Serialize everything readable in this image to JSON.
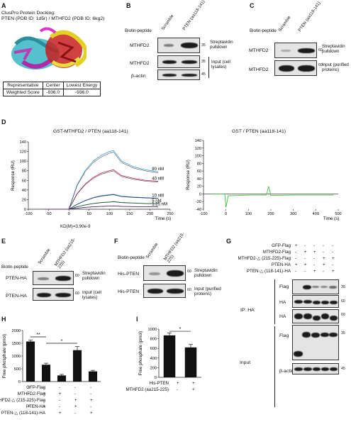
{
  "panels": {
    "a": "A",
    "b": "B",
    "c": "C",
    "d": "D",
    "e": "E",
    "f": "F",
    "g": "G",
    "h": "H",
    "i": "I"
  },
  "a": {
    "title": "ClusPro Protein Docking:",
    "subtitle": "PTEN (PDB ID: 1d5r) / MTHFD2 (PDB ID: 6kg2)",
    "table": {
      "h1": "Representative",
      "h2": "Center",
      "h3": "Lowest Energy",
      "r1": "Weighted Score",
      "r2": "-936.0",
      "r3": "-936.0"
    }
  },
  "b": {
    "biotin": "Biotin-peptide",
    "lane1": "Scramble",
    "lane2": "PTEN (aa118-141)",
    "row1": "MTHFD2",
    "row2": "MTHFD2",
    "row3": "β-actin",
    "mw1": "35",
    "mw2": "35",
    "mw3": "45",
    "lab1": "Streptavidin pulldown",
    "lab2": "Input (cell lysates)"
  },
  "c": {
    "biotin": "Biotin-peptide",
    "lane1": "Scramble",
    "lane2": "PTEN (aa118-141)",
    "row1": "MTHFD2",
    "row2": "MTHFD2",
    "mw1": "60",
    "mw2": "60",
    "lab1": "Streptavidin pulldown",
    "lab2": "Input (purified proteins)"
  },
  "d": {
    "title1": "GST-MTHFD2 / PTEN (aa118-141)",
    "title2": "GST / PTEN (aa118-141)",
    "ylabel": "Response (RU)",
    "xlabel": "Time (s)",
    "conc": [
      "80 nM",
      "40 nM",
      "10 nM",
      "5 nM",
      "1.25 nM"
    ],
    "kd": "KD(M)=3.90e-9"
  },
  "chart_data": [
    {
      "type": "line",
      "title": "GST-MTHFD2 / PTEN (aa118-141)",
      "xlabel": "Time (s)",
      "ylabel": "Response (RU)",
      "xlim": [
        -100,
        250
      ],
      "ylim": [
        0,
        140
      ],
      "xticks": [
        -100,
        -50,
        0,
        50,
        100,
        150,
        200,
        250
      ],
      "yticks": [
        0,
        20,
        40,
        60,
        80,
        100,
        120,
        140
      ],
      "series": [
        {
          "name": "80 nM",
          "x": [
            -60,
            0,
            20,
            40,
            60,
            80,
            100,
            110,
            130,
            160,
            190,
            220
          ],
          "y": [
            0,
            0,
            50,
            80,
            100,
            112,
            120,
            122,
            100,
            88,
            82,
            78
          ]
        },
        {
          "name": "40 nM",
          "x": [
            -60,
            0,
            20,
            40,
            60,
            80,
            100,
            110,
            130,
            160,
            190,
            220
          ],
          "y": [
            0,
            0,
            32,
            52,
            66,
            75,
            80,
            82,
            70,
            64,
            60,
            58
          ]
        },
        {
          "name": "10 nM",
          "x": [
            -60,
            0,
            20,
            40,
            60,
            80,
            100,
            110,
            130,
            160,
            190,
            220
          ],
          "y": [
            0,
            0,
            10,
            18,
            24,
            28,
            30,
            31,
            27,
            25,
            24,
            23
          ]
        },
        {
          "name": "5 nM",
          "x": [
            -60,
            0,
            20,
            40,
            60,
            80,
            100,
            110,
            130,
            160,
            190,
            220
          ],
          "y": [
            0,
            0,
            5,
            9,
            12,
            14,
            15,
            16,
            14,
            13,
            12,
            12
          ]
        },
        {
          "name": "1.25 nM",
          "x": [
            -60,
            0,
            20,
            40,
            60,
            80,
            100,
            110,
            130,
            160,
            190,
            220
          ],
          "y": [
            0,
            0,
            2,
            4,
            5,
            6,
            6.5,
            7,
            6,
            5.5,
            5,
            5
          ]
        }
      ]
    },
    {
      "type": "line",
      "title": "GST / PTEN (aa118-141)",
      "xlabel": "Time (s)",
      "ylabel": "Response (RU)",
      "xlim": [
        -100,
        500
      ],
      "ylim": [
        -40,
        140
      ],
      "xticks": [
        -100,
        0,
        100,
        200,
        300,
        400,
        500
      ],
      "yticks": [
        -40,
        -20,
        0,
        20,
        40,
        60,
        80,
        100,
        120,
        140
      ],
      "series": [
        {
          "x": [
            -60,
            -5,
            0,
            10,
            100,
            180,
            190,
            200,
            300,
            400,
            480
          ],
          "y": [
            0,
            0,
            -35,
            -5,
            -3,
            -3,
            20,
            -4,
            -3,
            -3,
            -3
          ]
        }
      ]
    },
    {
      "type": "bar",
      "xlabel": "",
      "ylabel": "Free phosphate (pmol)",
      "ylim": [
        0,
        2000
      ],
      "yticks": [
        0,
        500,
        1000,
        1500,
        2000
      ],
      "categories": [
        "1",
        "2",
        "3",
        "4",
        "5"
      ],
      "values": [
        1570,
        660,
        240,
        1230,
        400
      ],
      "errors": [
        50,
        60,
        40,
        140,
        40
      ]
    },
    {
      "type": "bar",
      "xlabel": "",
      "ylabel": "Free phosphate (pmol)",
      "ylim": [
        0,
        1000
      ],
      "yticks": [
        0,
        200,
        400,
        600,
        800,
        1000
      ],
      "categories": [
        "1",
        "2"
      ],
      "values": [
        870,
        620
      ],
      "errors": [
        50,
        60
      ]
    }
  ],
  "e": {
    "biotin": "Biotin-peptide",
    "lane1": "Scramble",
    "lane2": "MTHFD2 (aa215-225)",
    "row1": "PTEN-HA",
    "row2": "PTEN-HA",
    "mw1": "60",
    "mw2": "60",
    "lab1": "Streptavidin pulldown",
    "lab2": "Input (cell lysates)"
  },
  "f": {
    "biotin": "Biotin-peptide",
    "lane1": "Scramble",
    "lane2": "MTHFD2 (aa215-225)",
    "row1": "His-PTEN",
    "row2": "His-PTEN",
    "mw1": "60",
    "mw2": "60",
    "lab1": "Streptavidin pulldown",
    "lab2": "Input (purified proteins)"
  },
  "g": {
    "rows": [
      "GFP-Flag",
      "MTHFD2-Flag",
      "MTHFD2-△ (215-225)-Flag",
      "PTEN-HA",
      "PTEN-△ (118-141)-HA"
    ],
    "signs": [
      [
        "+",
        "-",
        "-",
        "-",
        "-"
      ],
      [
        "-",
        "+",
        "+",
        "-",
        "-"
      ],
      [
        "-",
        "-",
        "-",
        "+",
        "+"
      ],
      [
        "+",
        "+",
        "-",
        "+",
        "-"
      ],
      [
        "-",
        "-",
        "+",
        "-",
        "+"
      ]
    ],
    "ip": "IP: HA",
    "input": "Input",
    "flag": "Flag",
    "ha": "HA",
    "actin": "β-actin",
    "mw": [
      "35",
      "60",
      "60",
      "35",
      "45"
    ]
  },
  "h": {
    "ylabel": "Free phosphate (pmol)",
    "rows": [
      "GFP-Flag",
      "MTHFD2-Flag",
      "MTHFD2-△ (215-225)-Flag",
      "PTEN-HA",
      "PTEN-△ (118-141)-HA"
    ],
    "signs": [
      [
        "+",
        "-",
        "-",
        "-",
        "-"
      ],
      [
        "-",
        "+",
        "+",
        "-",
        "-"
      ],
      [
        "-",
        "-",
        "-",
        "+",
        "+"
      ],
      [
        "+",
        "+",
        "-",
        "+",
        "-"
      ],
      [
        "-",
        "-",
        "+",
        "-",
        "+"
      ]
    ],
    "sig1": "**",
    "sig2": "*"
  },
  "i": {
    "ylabel": "Free phosphate (pmol)",
    "rows": [
      "His-PTEN",
      "MTHFD2 (aa215-225)"
    ],
    "signs": [
      [
        "+",
        "+"
      ],
      [
        "-",
        "+"
      ]
    ],
    "sig": "*"
  }
}
